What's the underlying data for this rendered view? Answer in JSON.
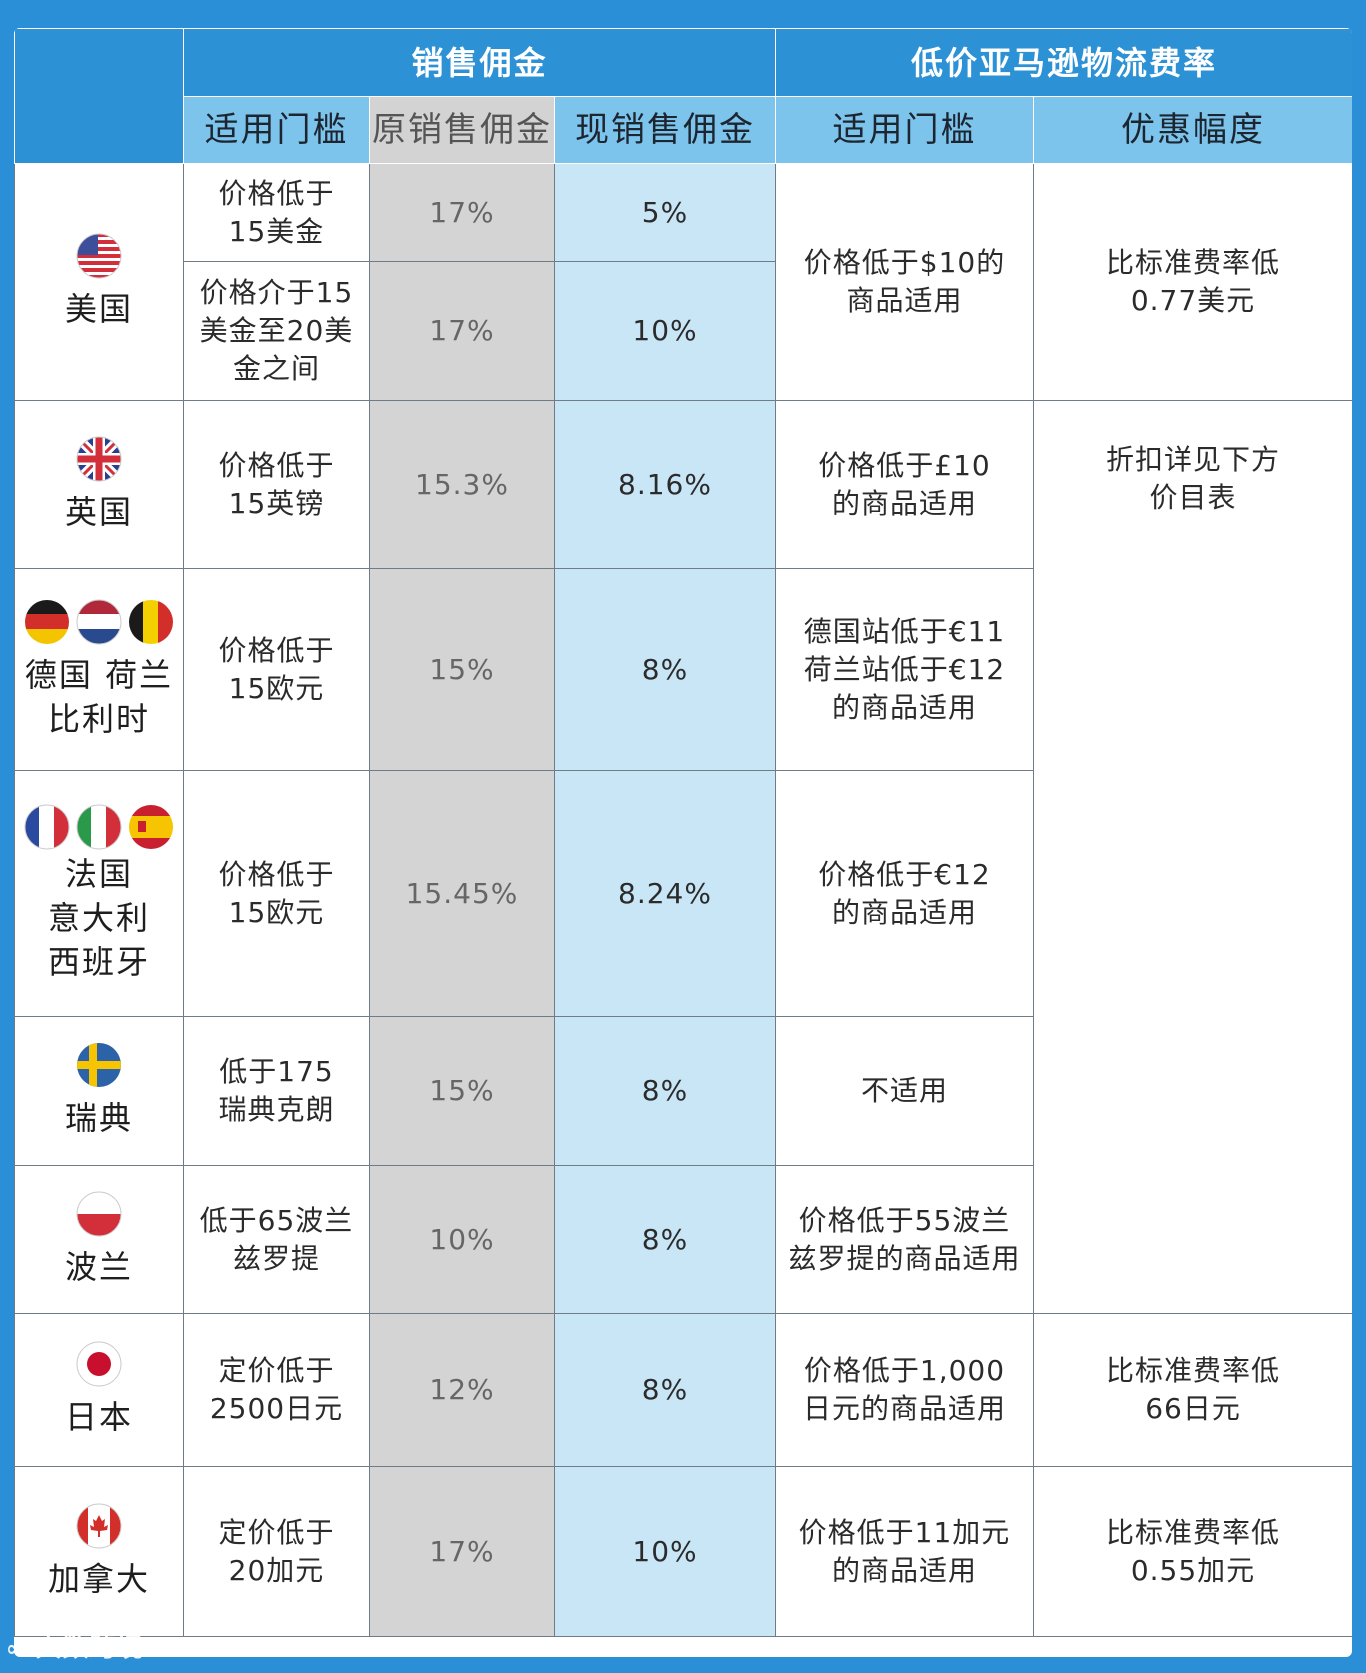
{
  "headers": {
    "commission": "销售佣金",
    "fba": "低价亚马逊物流费率",
    "threshold": "适用门槛",
    "orig_commission": "原销售佣金",
    "new_commission": "现销售佣金",
    "fba_threshold": "适用门槛",
    "discount": "优惠幅度"
  },
  "rows": {
    "us": {
      "name": "美国",
      "flag_icon": "us-flag-icon",
      "t1": "价格低于\n15美金",
      "o1": "17%",
      "n1": "5%",
      "t2": "价格介于15\n美金至20美\n金之间",
      "o2": "17%",
      "n2": "10%",
      "fba_threshold": "价格低于$10的\n商品适用",
      "discount": "比标准费率低\n0.77美元"
    },
    "uk": {
      "name": "英国",
      "threshold": "价格低于\n15英镑",
      "orig": "15.3%",
      "new": "8.16%",
      "fba_threshold": "价格低于£10\n的商品适用",
      "discount": "折扣详见下方\n价目表"
    },
    "de": {
      "name": "德国 荷兰\n比利时",
      "threshold": "价格低于\n15欧元",
      "orig": "15%",
      "new": "8%",
      "fba_threshold": "德国站低于€11\n荷兰站低于€12\n的商品适用"
    },
    "fr": {
      "name": "法国\n意大利\n西班牙",
      "threshold": "价格低于\n15欧元",
      "orig": "15.45%",
      "new": "8.24%",
      "fba_threshold": "价格低于€12\n的商品适用"
    },
    "se": {
      "name": "瑞典",
      "threshold": "低于175\n瑞典克朗",
      "orig": "15%",
      "new": "8%",
      "fba_threshold": "不适用"
    },
    "pl": {
      "name": "波兰",
      "threshold": "低于65波兰\n兹罗提",
      "orig": "10%",
      "new": "8%",
      "fba_threshold": "价格低于55波兰\n兹罗提的商品适用"
    },
    "jp": {
      "name": "日本",
      "threshold": "定价低于\n2500日元",
      "orig": "12%",
      "new": "8%",
      "fba_threshold": "价格低于1,000\n日元的商品适用",
      "discount": "比标准费率低\n66日元"
    },
    "ca": {
      "name": "加拿大",
      "threshold": "定价低于\n20加元",
      "orig": "17%",
      "new": "10%",
      "fba_threshold": "价格低于11加元\n的商品适用",
      "discount": "比标准费率低\n0.55加元"
    }
  },
  "watermark": "大数跨境",
  "colors": {
    "header_dark": "#2d91d6",
    "header_light": "#7cc4ec",
    "gray_col": "#d4d4d4",
    "blue_col": "#c9e6f7"
  }
}
